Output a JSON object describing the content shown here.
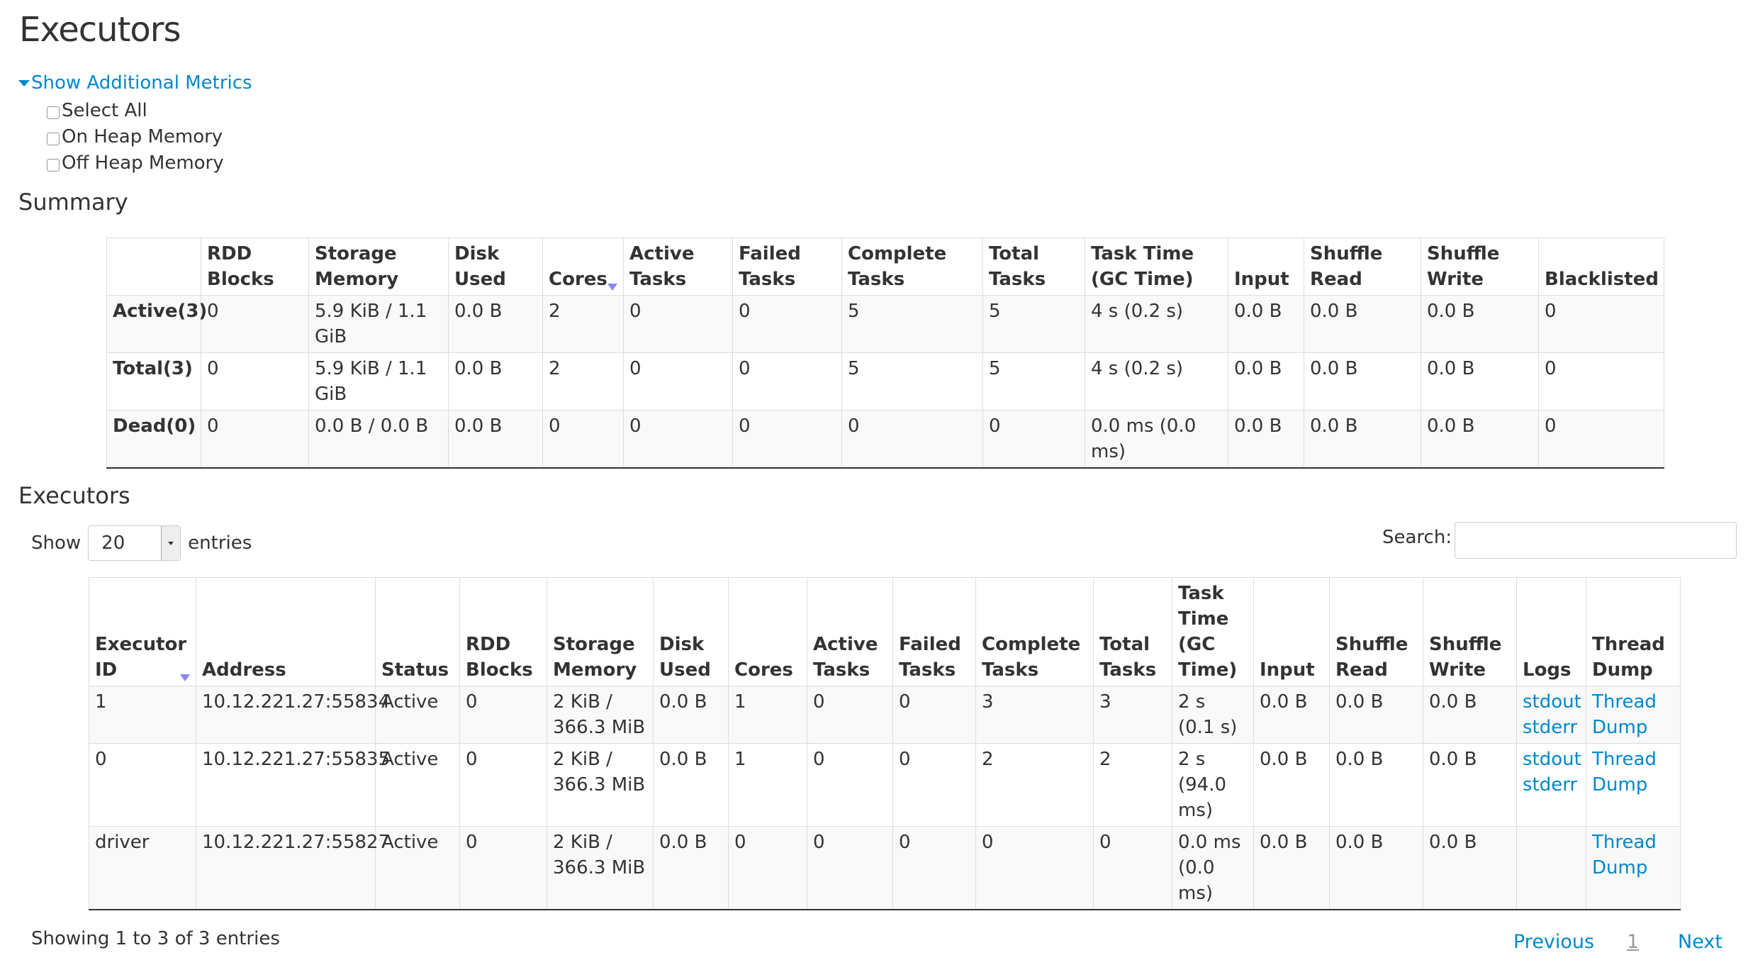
{
  "page_title": "Executors",
  "additional_metrics": {
    "toggle_label": "Show Additional Metrics",
    "options": [
      "Select All",
      "On Heap Memory",
      "Off Heap Memory"
    ]
  },
  "summary": {
    "heading": "Summary",
    "columns": [
      "",
      "RDD Blocks",
      "Storage Memory",
      "Disk Used",
      "Cores",
      "Active Tasks",
      "Failed Tasks",
      "Complete Tasks",
      "Total Tasks",
      "Task Time (GC Time)",
      "Input",
      "Shuffle Read",
      "Shuffle Write",
      "Blacklisted"
    ],
    "sorted_column": "Cores",
    "rows": [
      [
        "Active(3)",
        "0",
        "5.9 KiB / 1.1 GiB",
        "0.0 B",
        "2",
        "0",
        "0",
        "5",
        "5",
        "4 s (0.2 s)",
        "0.0 B",
        "0.0 B",
        "0.0 B",
        "0"
      ],
      [
        "Total(3)",
        "0",
        "5.9 KiB / 1.1 GiB",
        "0.0 B",
        "2",
        "0",
        "0",
        "5",
        "5",
        "4 s (0.2 s)",
        "0.0 B",
        "0.0 B",
        "0.0 B",
        "0"
      ],
      [
        "Dead(0)",
        "0",
        "0.0 B / 0.0 B",
        "0.0 B",
        "0",
        "0",
        "0",
        "0",
        "0",
        "0.0 ms (0.0 ms)",
        "0.0 B",
        "0.0 B",
        "0.0 B",
        "0"
      ]
    ]
  },
  "executors": {
    "heading": "Executors",
    "show_label": "Show",
    "entries_value": "20",
    "entries_label": "entries",
    "search_label": "Search:",
    "search_value": "",
    "columns": [
      "Executor ID",
      "Address",
      "Status",
      "RDD Blocks",
      "Storage Memory",
      "Disk Used",
      "Cores",
      "Active Tasks",
      "Failed Tasks",
      "Complete Tasks",
      "Total Tasks",
      "Task Time (GC Time)",
      "Input",
      "Shuffle Read",
      "Shuffle Write",
      "Logs",
      "Thread Dump"
    ],
    "sorted_column": "Executor ID",
    "rows": [
      {
        "cells": [
          "1",
          "10.12.221.27:55834",
          "Active",
          "0",
          "2 KiB / 366.3 MiB",
          "0.0 B",
          "1",
          "0",
          "0",
          "3",
          "3",
          "2 s (0.1 s)",
          "0.0 B",
          "0.0 B",
          "0.0 B"
        ],
        "logs": [
          "stdout",
          "stderr"
        ],
        "thread_dump": "Thread Dump"
      },
      {
        "cells": [
          "0",
          "10.12.221.27:55835",
          "Active",
          "0",
          "2 KiB / 366.3 MiB",
          "0.0 B",
          "1",
          "0",
          "0",
          "2",
          "2",
          "2 s (94.0 ms)",
          "0.0 B",
          "0.0 B",
          "0.0 B"
        ],
        "logs": [
          "stdout",
          "stderr"
        ],
        "thread_dump": "Thread Dump"
      },
      {
        "cells": [
          "driver",
          "10.12.221.27:55827",
          "Active",
          "0",
          "2 KiB / 366.3 MiB",
          "0.0 B",
          "0",
          "0",
          "0",
          "0",
          "0",
          "0.0 ms (0.0 ms)",
          "0.0 B",
          "0.0 B",
          "0.0 B"
        ],
        "logs": [],
        "thread_dump": "Thread Dump"
      }
    ],
    "info": "Showing 1 to 3 of 3 entries",
    "pagination": {
      "previous": "Previous",
      "current": "1",
      "next": "Next"
    }
  },
  "colors": {
    "link": "#0088cc",
    "sort_arrow": "#8888ee",
    "stripe": "#f9f9f9"
  }
}
